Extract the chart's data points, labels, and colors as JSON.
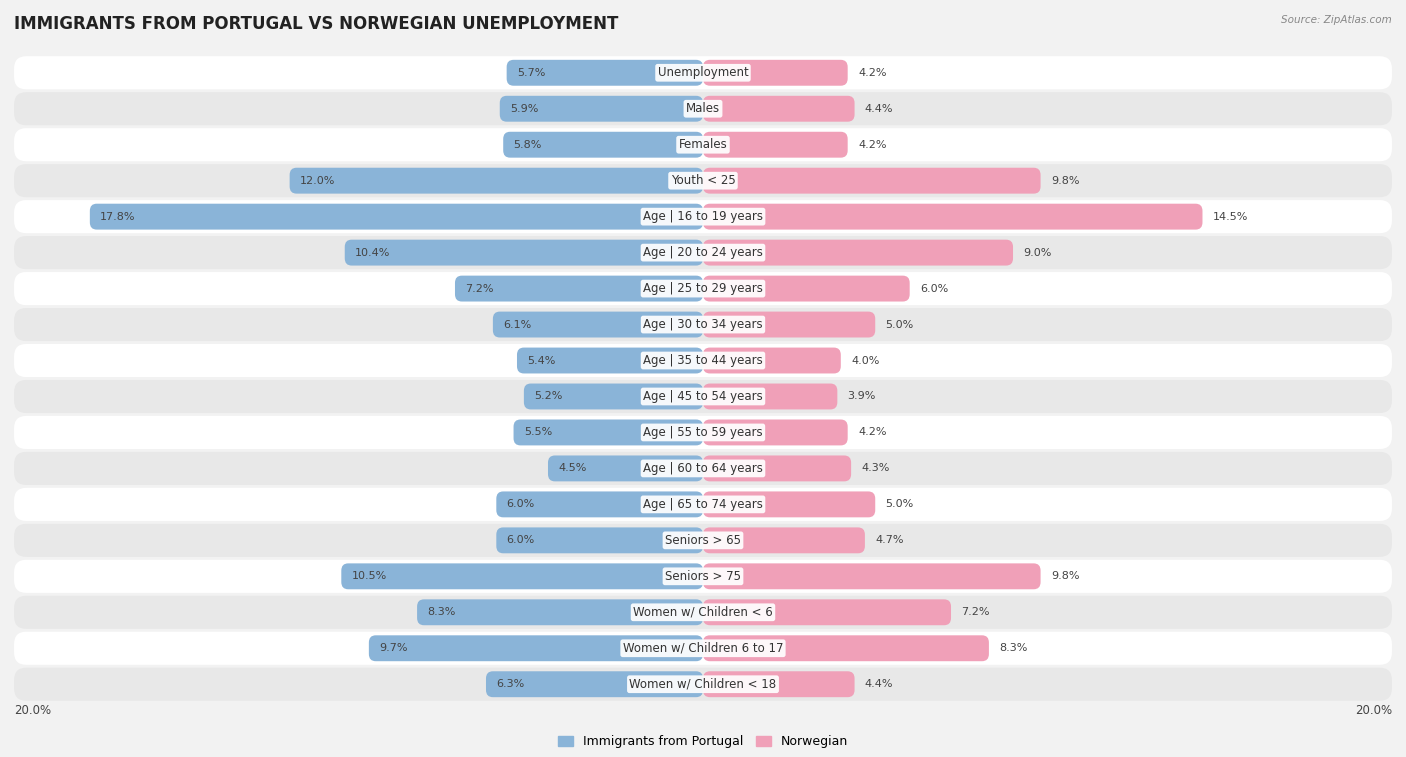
{
  "title": "IMMIGRANTS FROM PORTUGAL VS NORWEGIAN UNEMPLOYMENT",
  "source": "Source: ZipAtlas.com",
  "categories": [
    "Unemployment",
    "Males",
    "Females",
    "Youth < 25",
    "Age | 16 to 19 years",
    "Age | 20 to 24 years",
    "Age | 25 to 29 years",
    "Age | 30 to 34 years",
    "Age | 35 to 44 years",
    "Age | 45 to 54 years",
    "Age | 55 to 59 years",
    "Age | 60 to 64 years",
    "Age | 65 to 74 years",
    "Seniors > 65",
    "Seniors > 75",
    "Women w/ Children < 6",
    "Women w/ Children 6 to 17",
    "Women w/ Children < 18"
  ],
  "portugal_values": [
    5.7,
    5.9,
    5.8,
    12.0,
    17.8,
    10.4,
    7.2,
    6.1,
    5.4,
    5.2,
    5.5,
    4.5,
    6.0,
    6.0,
    10.5,
    8.3,
    9.7,
    6.3
  ],
  "norwegian_values": [
    4.2,
    4.4,
    4.2,
    9.8,
    14.5,
    9.0,
    6.0,
    5.0,
    4.0,
    3.9,
    4.2,
    4.3,
    5.0,
    4.7,
    9.8,
    7.2,
    8.3,
    4.4
  ],
  "portugal_color": "#8ab4d8",
  "norwegian_color": "#f0a0b8",
  "axis_max": 20.0,
  "bg_color": "#f2f2f2",
  "row_light": "#ffffff",
  "row_dark": "#e8e8e8",
  "title_fontsize": 12,
  "label_fontsize": 8.5,
  "value_fontsize": 8,
  "legend_fontsize": 9
}
